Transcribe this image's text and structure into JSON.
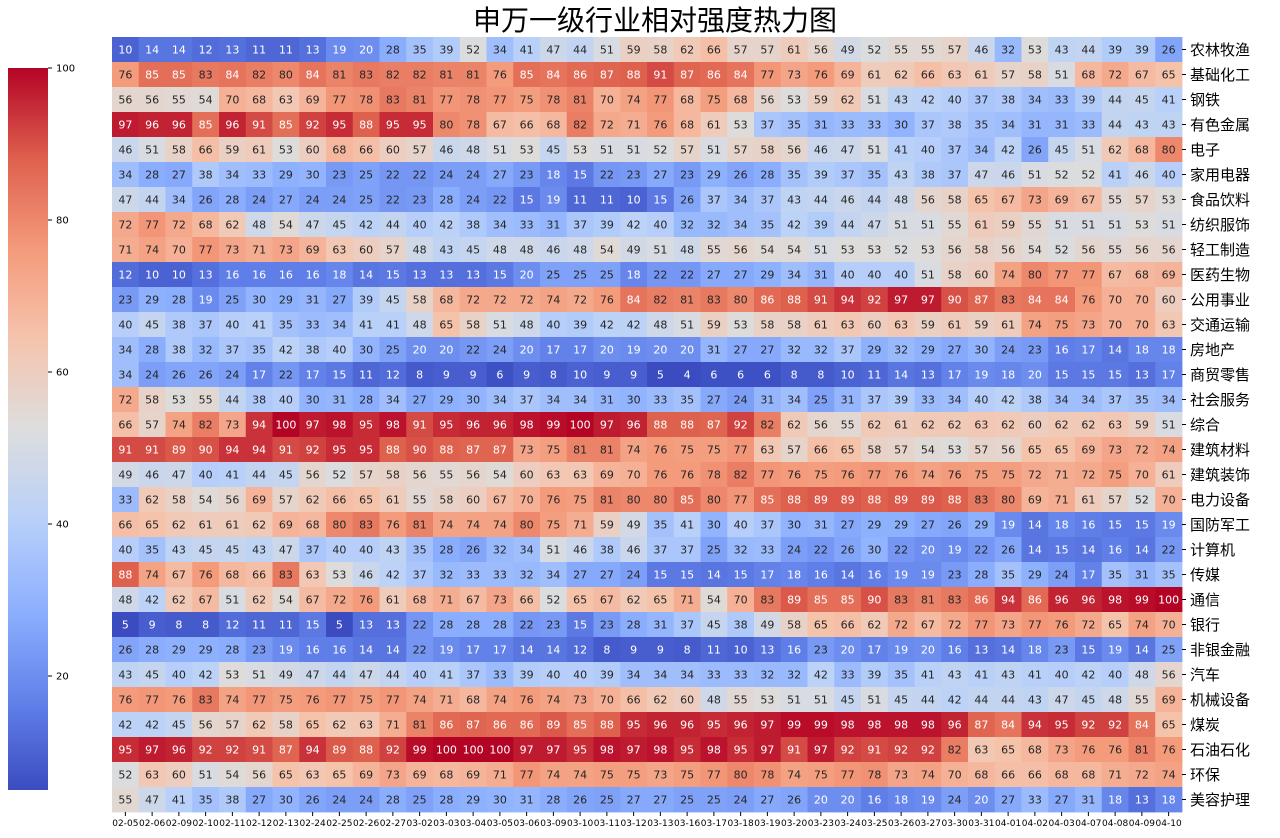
{
  "chart_data": {
    "type": "heatmap",
    "title": "申万一级行业相对强度热力图",
    "colormap": "coolwarm",
    "vmin": 5,
    "vmax": 100,
    "colorbar_ticks": [
      20,
      40,
      60,
      80,
      100
    ],
    "x": [
      "02-05",
      "02-06",
      "02-09",
      "02-10",
      "02-11",
      "02-12",
      "02-13",
      "02-24",
      "02-25",
      "02-26",
      "02-27",
      "03-02",
      "03-03",
      "03-04",
      "03-05",
      "03-06",
      "03-09",
      "03-10",
      "03-11",
      "03-12",
      "03-13",
      "03-16",
      "03-17",
      "03-18",
      "03-19",
      "03-20",
      "03-23",
      "03-24",
      "03-25",
      "03-26",
      "03-27",
      "03-30",
      "03-31",
      "04-01",
      "04-02",
      "04-03",
      "04-07",
      "04-08",
      "04-09",
      "04-10"
    ],
    "y": [
      "农林牧渔",
      "基础化工",
      "钢铁",
      "有色金属",
      "电子",
      "家用电器",
      "食品饮料",
      "纺织服饰",
      "轻工制造",
      "医药生物",
      "公用事业",
      "交通运输",
      "房地产",
      "商贸零售",
      "社会服务",
      "综合",
      "建筑材料",
      "建筑装饰",
      "电力设备",
      "国防军工",
      "计算机",
      "传媒",
      "通信",
      "银行",
      "非银金融",
      "汽车",
      "机械设备",
      "煤炭",
      "石油石化",
      "环保",
      "美容护理"
    ],
    "values": [
      [
        10,
        14,
        14,
        12,
        13,
        11,
        11,
        13,
        19,
        20,
        28,
        35,
        39,
        52,
        34,
        41,
        47,
        44,
        51,
        59,
        58,
        62,
        66,
        57,
        57,
        61,
        56,
        49,
        52,
        55,
        55,
        57,
        46,
        32,
        53,
        43,
        44,
        39,
        39,
        26
      ],
      [
        76,
        85,
        85,
        83,
        84,
        82,
        80,
        84,
        81,
        83,
        82,
        82,
        81,
        81,
        76,
        85,
        84,
        86,
        87,
        88,
        91,
        87,
        86,
        84,
        77,
        73,
        76,
        69,
        61,
        62,
        66,
        63,
        61,
        57,
        58,
        51,
        68,
        72,
        67,
        65
      ],
      [
        56,
        56,
        55,
        54,
        70,
        68,
        63,
        69,
        77,
        78,
        83,
        81,
        77,
        78,
        77,
        75,
        78,
        81,
        70,
        74,
        77,
        68,
        75,
        68,
        56,
        53,
        59,
        62,
        51,
        43,
        42,
        40,
        37,
        38,
        34,
        33,
        39,
        44,
        45,
        41
      ],
      [
        97,
        96,
        96,
        85,
        96,
        91,
        85,
        92,
        95,
        88,
        95,
        95,
        80,
        78,
        67,
        66,
        68,
        82,
        72,
        71,
        76,
        68,
        61,
        53,
        37,
        35,
        31,
        33,
        33,
        30,
        37,
        38,
        35,
        34,
        31,
        31,
        33,
        44,
        43,
        43
      ],
      [
        46,
        51,
        58,
        66,
        59,
        61,
        53,
        60,
        68,
        66,
        60,
        57,
        46,
        48,
        51,
        53,
        45,
        53,
        51,
        51,
        52,
        57,
        51,
        57,
        58,
        56,
        46,
        47,
        51,
        41,
        40,
        37,
        34,
        42,
        26,
        45,
        51,
        62,
        68,
        80
      ],
      [
        34,
        28,
        27,
        38,
        34,
        33,
        29,
        30,
        23,
        25,
        22,
        22,
        24,
        24,
        27,
        23,
        18,
        15,
        22,
        23,
        27,
        23,
        29,
        26,
        28,
        35,
        39,
        37,
        35,
        43,
        38,
        37,
        47,
        46,
        51,
        52,
        52,
        41,
        46,
        40
      ],
      [
        47,
        44,
        34,
        26,
        28,
        24,
        27,
        24,
        24,
        25,
        22,
        23,
        28,
        24,
        22,
        15,
        19,
        11,
        11,
        10,
        15,
        26,
        37,
        34,
        37,
        43,
        44,
        46,
        44,
        48,
        56,
        58,
        65,
        67,
        73,
        69,
        67,
        55,
        57,
        53
      ],
      [
        72,
        77,
        72,
        68,
        62,
        48,
        54,
        47,
        45,
        42,
        44,
        40,
        42,
        38,
        34,
        33,
        31,
        37,
        39,
        42,
        40,
        32,
        32,
        34,
        35,
        42,
        39,
        44,
        47,
        51,
        51,
        55,
        61,
        59,
        55,
        51,
        51,
        51,
        53,
        51
      ],
      [
        71,
        74,
        70,
        77,
        73,
        71,
        73,
        69,
        63,
        60,
        57,
        48,
        43,
        45,
        48,
        48,
        46,
        48,
        54,
        49,
        51,
        48,
        55,
        56,
        54,
        54,
        51,
        53,
        53,
        52,
        53,
        56,
        58,
        56,
        54,
        52,
        56,
        55,
        56,
        56
      ],
      [
        12,
        10,
        10,
        13,
        16,
        16,
        16,
        16,
        18,
        14,
        15,
        13,
        13,
        13,
        15,
        20,
        25,
        25,
        25,
        18,
        22,
        22,
        27,
        27,
        29,
        34,
        31,
        40,
        40,
        40,
        51,
        58,
        60,
        74,
        80,
        77,
        77,
        67,
        68,
        69
      ],
      [
        23,
        29,
        28,
        19,
        25,
        30,
        29,
        31,
        27,
        39,
        45,
        58,
        68,
        72,
        72,
        72,
        74,
        72,
        76,
        84,
        82,
        81,
        83,
        80,
        86,
        88,
        91,
        94,
        92,
        97,
        97,
        90,
        87,
        83,
        84,
        84,
        76,
        70,
        70,
        60
      ],
      [
        40,
        45,
        38,
        37,
        40,
        41,
        35,
        33,
        34,
        41,
        41,
        48,
        65,
        58,
        51,
        48,
        40,
        39,
        42,
        42,
        48,
        51,
        59,
        53,
        58,
        58,
        61,
        63,
        60,
        63,
        59,
        61,
        59,
        61,
        74,
        75,
        73,
        70,
        70,
        63
      ],
      [
        34,
        28,
        38,
        32,
        37,
        35,
        42,
        38,
        40,
        30,
        25,
        20,
        20,
        22,
        24,
        20,
        17,
        17,
        20,
        19,
        20,
        20,
        31,
        27,
        27,
        32,
        32,
        37,
        29,
        32,
        29,
        27,
        30,
        24,
        23,
        16,
        17,
        14,
        18,
        18
      ],
      [
        34,
        24,
        26,
        26,
        24,
        17,
        22,
        17,
        15,
        11,
        12,
        8,
        9,
        9,
        6,
        9,
        8,
        10,
        9,
        9,
        5,
        4,
        6,
        6,
        6,
        8,
        8,
        10,
        11,
        14,
        13,
        17,
        19,
        18,
        20,
        15,
        15,
        15,
        13,
        17
      ],
      [
        72,
        58,
        53,
        55,
        44,
        38,
        40,
        30,
        31,
        28,
        34,
        27,
        29,
        30,
        34,
        37,
        34,
        34,
        31,
        30,
        33,
        35,
        27,
        24,
        31,
        34,
        25,
        31,
        37,
        39,
        33,
        34,
        40,
        42,
        38,
        34,
        34,
        37,
        35,
        34
      ],
      [
        66,
        57,
        74,
        82,
        73,
        94,
        100,
        97,
        98,
        95,
        98,
        91,
        95,
        96,
        96,
        98,
        99,
        100,
        97,
        96,
        88,
        88,
        87,
        92,
        82,
        62,
        56,
        55,
        62,
        61,
        62,
        62,
        63,
        62,
        60,
        62,
        62,
        63,
        59,
        51
      ],
      [
        91,
        91,
        89,
        90,
        94,
        94,
        91,
        92,
        95,
        95,
        88,
        90,
        88,
        87,
        87,
        73,
        75,
        81,
        81,
        74,
        76,
        75,
        75,
        77,
        63,
        57,
        66,
        65,
        58,
        57,
        54,
        53,
        57,
        56,
        65,
        65,
        69,
        73,
        72,
        74
      ],
      [
        49,
        46,
        47,
        40,
        41,
        44,
        45,
        56,
        52,
        57,
        58,
        56,
        55,
        56,
        54,
        60,
        63,
        63,
        69,
        70,
        76,
        76,
        78,
        82,
        77,
        76,
        75,
        76,
        77,
        76,
        74,
        76,
        75,
        75,
        72,
        71,
        72,
        75,
        70,
        61
      ],
      [
        33,
        62,
        58,
        54,
        56,
        69,
        57,
        62,
        66,
        65,
        61,
        55,
        58,
        60,
        67,
        70,
        76,
        75,
        81,
        80,
        80,
        85,
        80,
        77,
        85,
        88,
        89,
        89,
        88,
        89,
        89,
        88,
        83,
        80,
        69,
        71,
        61,
        57,
        52,
        70
      ],
      [
        66,
        65,
        62,
        61,
        61,
        62,
        69,
        68,
        80,
        83,
        76,
        81,
        74,
        74,
        74,
        80,
        75,
        71,
        59,
        49,
        35,
        41,
        30,
        40,
        37,
        30,
        31,
        27,
        29,
        29,
        27,
        26,
        29,
        19,
        14,
        18,
        16,
        15,
        15,
        19
      ],
      [
        40,
        35,
        43,
        45,
        45,
        43,
        47,
        37,
        40,
        40,
        43,
        35,
        28,
        26,
        32,
        34,
        51,
        46,
        38,
        46,
        37,
        37,
        25,
        32,
        33,
        24,
        22,
        26,
        30,
        22,
        20,
        19,
        22,
        26,
        14,
        15,
        14,
        16,
        14,
        22
      ],
      [
        88,
        74,
        67,
        76,
        68,
        66,
        83,
        63,
        53,
        46,
        42,
        37,
        32,
        33,
        33,
        32,
        34,
        27,
        27,
        24,
        15,
        15,
        14,
        15,
        17,
        18,
        16,
        14,
        16,
        19,
        19,
        23,
        28,
        35,
        29,
        24,
        17,
        35,
        31,
        35
      ],
      [
        48,
        42,
        62,
        67,
        51,
        62,
        54,
        67,
        72,
        76,
        61,
        68,
        71,
        67,
        73,
        66,
        52,
        65,
        67,
        62,
        65,
        71,
        54,
        70,
        83,
        89,
        85,
        85,
        90,
        83,
        81,
        83,
        86,
        94,
        86,
        96,
        96,
        98,
        99,
        100
      ],
      [
        5,
        9,
        8,
        8,
        12,
        11,
        11,
        15,
        5,
        13,
        13,
        22,
        28,
        28,
        28,
        22,
        23,
        15,
        23,
        28,
        31,
        37,
        45,
        38,
        49,
        58,
        65,
        66,
        62,
        72,
        67,
        72,
        77,
        73,
        77,
        76,
        72,
        65,
        74,
        70
      ],
      [
        26,
        28,
        29,
        29,
        28,
        23,
        19,
        16,
        16,
        14,
        14,
        22,
        19,
        17,
        17,
        14,
        14,
        12,
        8,
        9,
        9,
        8,
        11,
        10,
        13,
        16,
        23,
        20,
        17,
        19,
        20,
        16,
        13,
        14,
        18,
        23,
        15,
        19,
        14,
        25
      ],
      [
        43,
        45,
        40,
        42,
        53,
        51,
        49,
        47,
        44,
        47,
        44,
        40,
        41,
        37,
        33,
        39,
        40,
        40,
        39,
        34,
        34,
        34,
        33,
        33,
        32,
        32,
        42,
        33,
        39,
        35,
        41,
        43,
        41,
        43,
        41,
        40,
        42,
        40,
        48,
        56
      ],
      [
        76,
        77,
        76,
        83,
        74,
        77,
        75,
        76,
        77,
        75,
        77,
        74,
        71,
        68,
        74,
        76,
        74,
        73,
        70,
        66,
        62,
        60,
        48,
        55,
        53,
        51,
        51,
        45,
        51,
        45,
        44,
        42,
        44,
        44,
        43,
        47,
        45,
        48,
        55,
        69
      ],
      [
        42,
        42,
        45,
        56,
        57,
        62,
        58,
        65,
        62,
        63,
        71,
        81,
        86,
        87,
        86,
        86,
        89,
        85,
        88,
        95,
        96,
        96,
        95,
        96,
        97,
        99,
        99,
        98,
        98,
        98,
        98,
        96,
        87,
        84,
        94,
        95,
        92,
        92,
        84,
        65
      ],
      [
        95,
        97,
        96,
        92,
        92,
        91,
        87,
        94,
        89,
        88,
        92,
        99,
        100,
        100,
        100,
        97,
        97,
        95,
        98,
        97,
        98,
        95,
        98,
        95,
        97,
        91,
        97,
        92,
        91,
        92,
        92,
        82,
        63,
        65,
        68,
        73,
        76,
        76,
        81,
        76
      ],
      [
        52,
        63,
        60,
        51,
        54,
        56,
        65,
        63,
        65,
        69,
        73,
        69,
        68,
        69,
        71,
        77,
        74,
        74,
        75,
        75,
        73,
        75,
        77,
        80,
        78,
        74,
        75,
        77,
        78,
        73,
        74,
        70,
        68,
        66,
        66,
        68,
        68,
        71,
        72,
        74
      ],
      [
        55,
        47,
        41,
        35,
        38,
        27,
        30,
        26,
        24,
        24,
        28,
        25,
        28,
        29,
        30,
        31,
        28,
        26,
        25,
        27,
        27,
        25,
        25,
        24,
        27,
        26,
        20,
        20,
        16,
        18,
        19,
        24,
        20,
        27,
        33,
        27,
        31,
        18,
        13,
        18
      ]
    ]
  }
}
